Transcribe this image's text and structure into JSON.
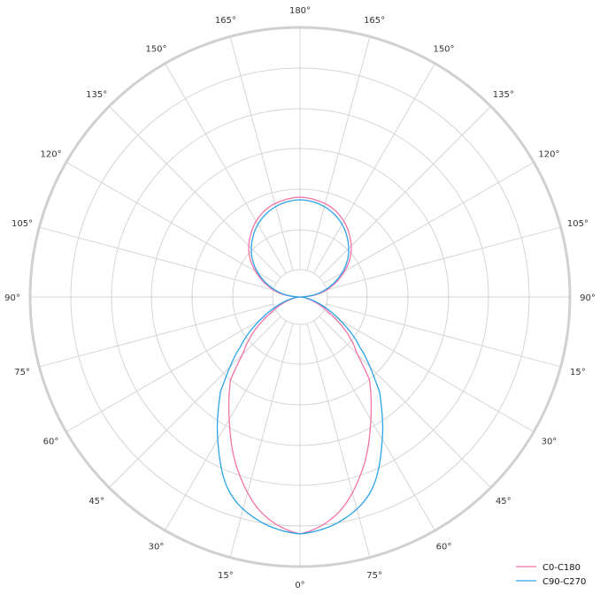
{
  "chart_data": {
    "type": "polar-line",
    "title": "",
    "angle_unit": "degrees",
    "zero_location": "bottom",
    "angle_tick_labels": [
      "0°",
      "15°",
      "30°",
      "45°",
      "60°",
      "75°",
      "90°",
      "105°",
      "120°",
      "135°",
      "150°",
      "165°",
      "180°",
      "165°",
      "150°",
      "135°",
      "120°",
      "105°",
      "90°",
      "15°",
      "30°",
      "45°",
      "60°",
      "75°"
    ],
    "radial_ticks": [
      31,
      76,
      122,
      168,
      213,
      259,
      305
    ],
    "rlim": [
      0,
      305
    ],
    "grid": true,
    "legend_placement": "bottom-right",
    "mirror_symmetric": true,
    "series": [
      {
        "name": "C0-C180",
        "color": "#f472a8",
        "angles": [
          0,
          10,
          20,
          30,
          40,
          45,
          50,
          60,
          70,
          80,
          90,
          100,
          110,
          120,
          130,
          140,
          150,
          160,
          170,
          180
        ],
        "values": [
          268,
          248,
          207,
          160,
          122,
          92,
          75,
          42,
          20,
          6,
          0,
          22,
          40,
          58,
          75,
          88,
          99,
          107,
          111,
          113
        ]
      },
      {
        "name": "C90-C270",
        "color": "#2ba3e8",
        "angles": [
          0,
          10,
          20,
          30,
          40,
          45,
          50,
          60,
          70,
          80,
          90,
          100,
          110,
          120,
          130,
          140,
          150,
          160,
          170,
          180
        ],
        "values": [
          268,
          258,
          234,
          186,
          140,
          112,
          88,
          52,
          25,
          8,
          0,
          19,
          37,
          55,
          71,
          84,
          95,
          103,
          108,
          110
        ]
      }
    ]
  }
}
